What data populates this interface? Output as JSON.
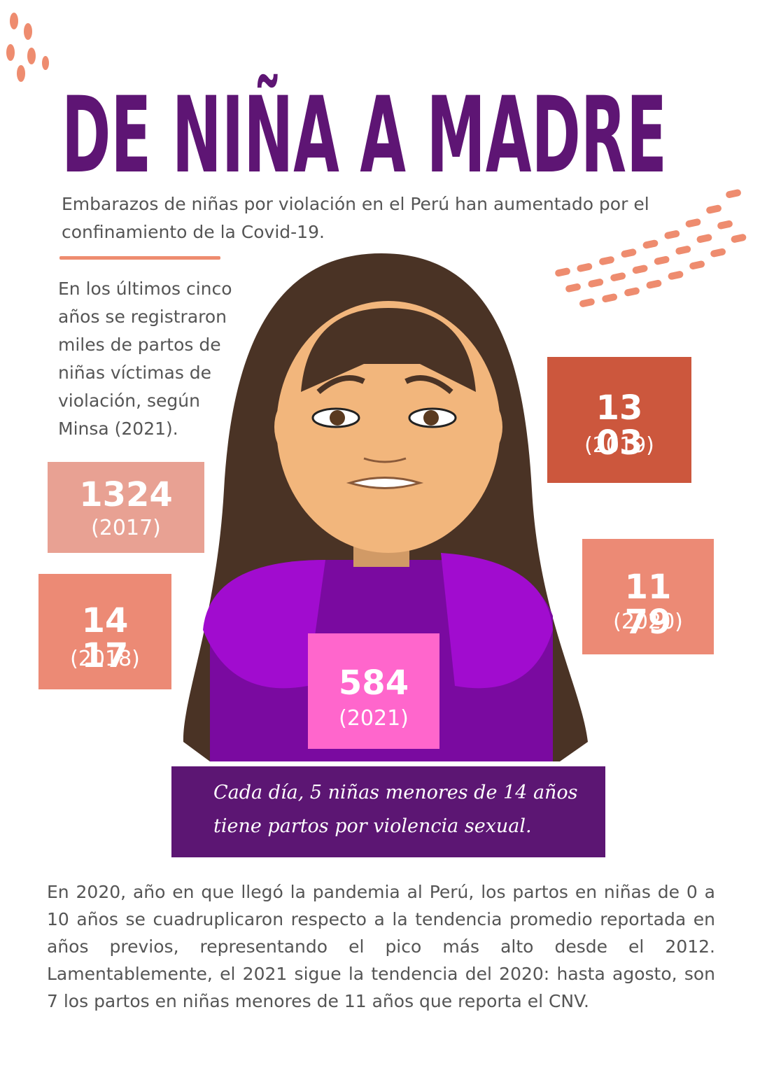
{
  "header": {
    "title": "DE NIÑA A MADRE",
    "subtitle": "Embarazos de niñas por violación en el Perú han aumentado por el confinamiento de la Covid-19."
  },
  "intro": "En los últimos cinco años se registraron miles de partos de niñas víctimas de violación, según Minsa (2021).",
  "stats": [
    {
      "value": "1324",
      "year": "(2017)"
    },
    {
      "value": "1417",
      "year": "(2018)"
    },
    {
      "value": "1303",
      "year": "(2019)"
    },
    {
      "value": "1179",
      "year": "(2020)"
    },
    {
      "value": "584",
      "year": "(2021)"
    }
  ],
  "banner": "Cada día, 5 niñas menores de 14 años tiene partos por violencia sexual.",
  "body": "En 2020, año en que llegó la pandemia al Perú, los partos en niñas de 0 a 10 años se cuadruplicaron respecto a la tendencia promedio reportada en años previos, representando el pico más alto desde el 2012. Lamentablemente, el 2021 sigue la tendencia del 2020: hasta agosto, son 7 los partos en niñas menores de 11 años que reporta el CNV."
}
